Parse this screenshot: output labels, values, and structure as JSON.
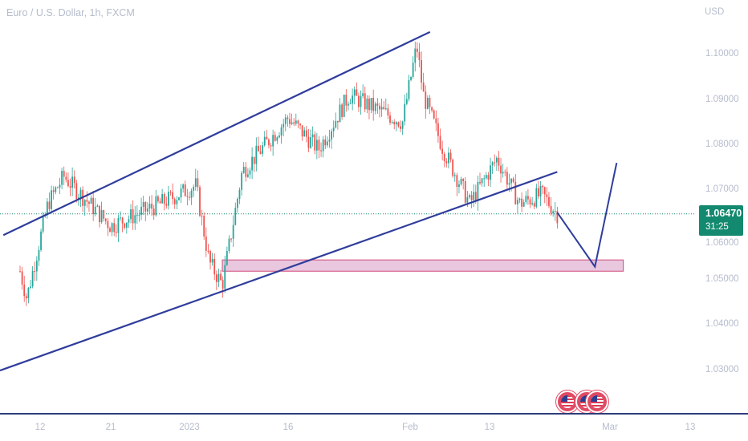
{
  "chart": {
    "title": "Euro / U.S. Dollar, 1h, FXCM",
    "currency": "USD",
    "price_ticks": [
      "1.10000",
      "1.09000",
      "1.08000",
      "1.07000",
      "1.06000",
      "1.05000",
      "1.04000",
      "1.03000"
    ],
    "time_ticks": [
      "12",
      "21",
      "2023",
      "16",
      "Feb",
      "13",
      "Mar",
      "13"
    ],
    "last_price": "1.06470",
    "countdown": "31:25"
  },
  "colors": {
    "up_candle": "#26a69a",
    "down_candle": "#ef5350",
    "trendline": "#2f3d9c",
    "zone_fill": "#e8c7df",
    "zone_border": "#d24b7a",
    "price_line": "#13896f",
    "badge": "#13896f"
  },
  "icons": [
    "us-flag-event-icon",
    "us-flag-event-icon",
    "us-flag-event-icon"
  ],
  "chart_data": {
    "type": "candlestick",
    "symbol": "EURUSD",
    "interval": "1h",
    "ylim": [
      1.02,
      1.1085
    ],
    "last_price": 1.0647,
    "key_points": [
      {
        "t": "Dec 6",
        "price": 1.052
      },
      {
        "t": "Dec 8",
        "price": 1.046
      },
      {
        "t": "Dec 13",
        "price": 1.067
      },
      {
        "t": "Dec 15",
        "price": 1.073
      },
      {
        "t": "Dec 21",
        "price": 1.062
      },
      {
        "t": "Dec 28",
        "price": 1.067
      },
      {
        "t": "Jan 2",
        "price": 1.071
      },
      {
        "t": "Jan 4",
        "price": 1.054
      },
      {
        "t": "Jan 6",
        "price": 1.049
      },
      {
        "t": "Jan 9",
        "price": 1.074
      },
      {
        "t": "Jan 16",
        "price": 1.086
      },
      {
        "t": "Jan 20",
        "price": 1.079
      },
      {
        "t": "Jan 24",
        "price": 1.091
      },
      {
        "t": "Jan 31",
        "price": 1.085
      },
      {
        "t": "Feb 2",
        "price": 1.102
      },
      {
        "t": "Feb 3",
        "price": 1.091
      },
      {
        "t": "Feb 6",
        "price": 1.079
      },
      {
        "t": "Feb 10",
        "price": 1.067
      },
      {
        "t": "Feb 14",
        "price": 1.077
      },
      {
        "t": "Feb 17",
        "price": 1.067
      },
      {
        "t": "Feb 20",
        "price": 1.069
      },
      {
        "t": "Feb 22",
        "price": 1.0647
      }
    ],
    "trendlines": [
      {
        "name": "channel upper",
        "from": {
          "t": "Dec 1",
          "price": 1.06
        },
        "to": {
          "t": "Feb 4",
          "price": 1.105
        }
      },
      {
        "name": "channel lower",
        "from": {
          "t": "Nov 30",
          "price": 1.03
        },
        "to": {
          "t": "Feb 22",
          "price": 1.074
        }
      }
    ],
    "zone": {
      "price_low": 1.052,
      "price_high": 1.0545
    },
    "projection": [
      {
        "t": "Feb 22",
        "price": 1.065
      },
      {
        "t": "Feb 27",
        "price": 1.053
      },
      {
        "t": "Mar 2",
        "price": 1.076
      }
    ]
  }
}
